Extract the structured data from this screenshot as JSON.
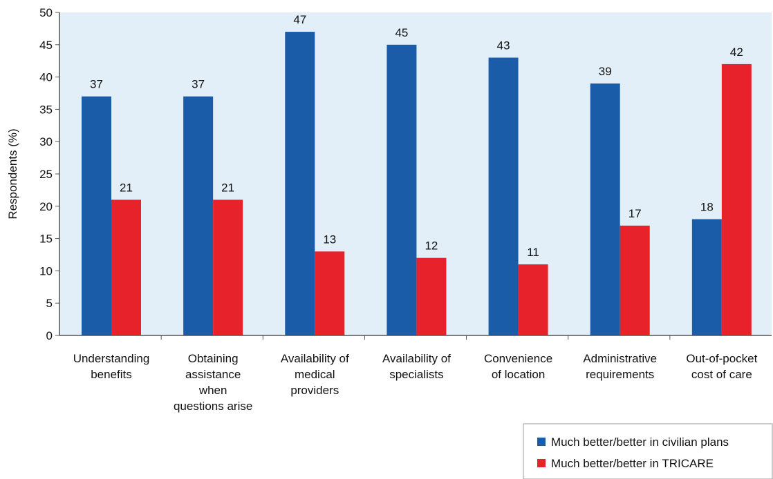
{
  "chart_data": {
    "type": "bar",
    "ylabel": "Respondents (%)",
    "ylim": [
      0,
      50
    ],
    "yticks": [
      "0",
      "5",
      "10",
      "15",
      "20",
      "25",
      "30",
      "35",
      "40",
      "45",
      "50"
    ],
    "grid": false,
    "legend_position": "bottom-right",
    "categories": [
      [
        "Understanding",
        "benefits"
      ],
      [
        "Obtaining",
        "assistance",
        "when",
        "questions arise"
      ],
      [
        "Availability of",
        "medical",
        "providers"
      ],
      [
        "Availability of",
        "specialists"
      ],
      [
        "Convenience",
        "of location"
      ],
      [
        "Administrative",
        "requirements"
      ],
      [
        "Out-of-pocket",
        "cost of care"
      ]
    ],
    "series": [
      {
        "name": "Much better/better in civilian plans",
        "color": "#1a5ca8",
        "values": [
          37,
          37,
          47,
          45,
          43,
          39,
          18
        ]
      },
      {
        "name": "Much better/better in TRICARE",
        "color": "#e8222a",
        "values": [
          21,
          21,
          13,
          12,
          11,
          17,
          42
        ]
      }
    ],
    "plot_background": "#e2eff9"
  }
}
